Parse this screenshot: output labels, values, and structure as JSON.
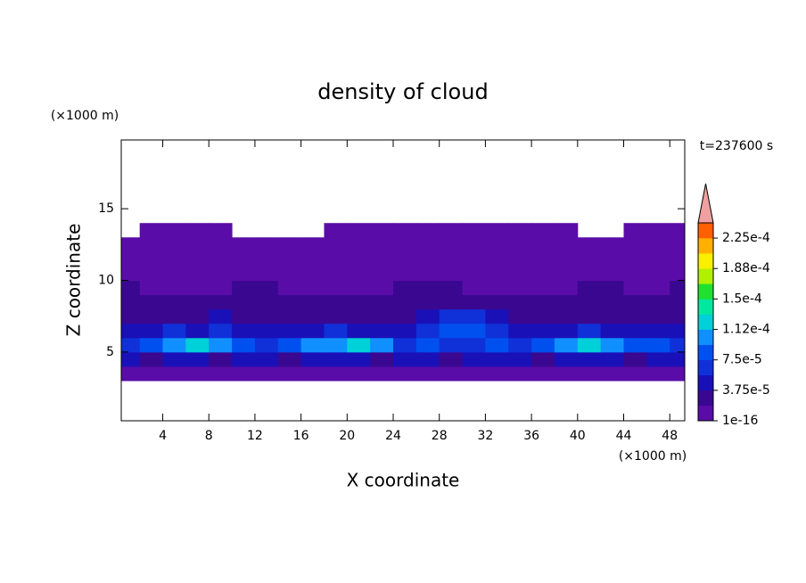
{
  "chart_data": {
    "type": "contour",
    "title": "density of cloud",
    "x_label": "X coordinate",
    "y_label": "Z coordinate",
    "x_unit": "(×1000 m)",
    "y_unit": "(×1000 m)",
    "annotation": "t=237600 s",
    "x": [
      1,
      3,
      5,
      7,
      9,
      11,
      13,
      15,
      17,
      19,
      21,
      23,
      25,
      27,
      29,
      31,
      33,
      35,
      37,
      39,
      41,
      43,
      45,
      47,
      49
    ],
    "y": [
      3.5,
      4.5,
      5.5,
      6.5,
      7.5,
      8.5,
      9.5,
      10.5,
      11.5,
      12.5,
      13.5
    ],
    "values": [
      [
        1e-05,
        1e-05,
        1e-05,
        1e-05,
        1e-05,
        1e-05,
        1e-05,
        1e-05,
        1e-05,
        1e-05,
        1e-05,
        1e-05,
        1e-05,
        1e-05,
        1e-05,
        1e-05,
        1e-05,
        1e-05,
        1e-05,
        1e-05,
        1e-05,
        1e-05,
        1e-05,
        1e-05,
        1e-05
      ],
      [
        4e-05,
        3e-05,
        4e-05,
        4e-05,
        3e-05,
        4e-05,
        4e-05,
        3e-05,
        4e-05,
        4e-05,
        4e-05,
        3e-05,
        4e-05,
        4e-05,
        3e-05,
        4e-05,
        4e-05,
        4e-05,
        3e-05,
        4e-05,
        4e-05,
        4e-05,
        3e-05,
        4e-05,
        4e-05
      ],
      [
        7e-05,
        8e-05,
        0.0001,
        0.00012,
        0.00011,
        9e-05,
        7e-05,
        9e-05,
        0.0001,
        0.00011,
        0.00012,
        0.0001,
        7e-05,
        8e-05,
        7e-05,
        6e-05,
        8e-05,
        7e-05,
        9e-05,
        0.00011,
        0.00012,
        0.0001,
        9e-05,
        8e-05,
        7e-05
      ],
      [
        5e-05,
        5e-05,
        6e-05,
        5e-05,
        6e-05,
        5e-05,
        4e-05,
        5e-05,
        5e-05,
        6e-05,
        5e-05,
        5e-05,
        5e-05,
        6e-05,
        8e-05,
        8e-05,
        7e-05,
        5e-05,
        5e-05,
        5e-05,
        6e-05,
        5e-05,
        5e-05,
        5e-05,
        5e-05
      ],
      [
        3e-05,
        3e-05,
        2e-05,
        3e-05,
        4e-05,
        3e-05,
        3e-05,
        3e-05,
        2e-05,
        3e-05,
        3e-05,
        3e-05,
        3e-05,
        4e-05,
        6e-05,
        7e-05,
        4e-05,
        3e-05,
        2e-05,
        3e-05,
        3e-05,
        2e-05,
        3e-05,
        3e-05,
        3e-05
      ],
      [
        2e-05,
        3e-05,
        2e-05,
        2e-05,
        2e-05,
        2e-05,
        3e-05,
        2e-05,
        2e-05,
        2e-05,
        3e-05,
        2e-05,
        3e-05,
        2e-05,
        3e-05,
        3e-05,
        2e-05,
        2e-05,
        2e-05,
        2e-05,
        2e-05,
        2e-05,
        2e-05,
        2e-05,
        2e-05
      ],
      [
        2e-05,
        1e-05,
        1e-05,
        1e-05,
        1e-05,
        2e-05,
        2e-05,
        1e-05,
        1e-05,
        1e-05,
        1e-05,
        1e-05,
        2e-05,
        2e-05,
        2e-05,
        1e-05,
        1e-05,
        1e-05,
        1e-05,
        1e-05,
        2e-05,
        2e-05,
        1e-05,
        1e-05,
        2e-05
      ],
      [
        1e-05,
        1e-05,
        1e-05,
        1e-05,
        1e-05,
        1e-05,
        1e-05,
        1e-05,
        1e-05,
        1e-05,
        1e-05,
        1e-05,
        1e-05,
        1e-05,
        1e-05,
        1e-05,
        1e-05,
        1e-05,
        1e-05,
        1e-05,
        1e-05,
        1e-05,
        1e-05,
        1e-05,
        1e-05
      ],
      [
        1e-05,
        1e-05,
        1e-05,
        1e-05,
        1e-05,
        1e-05,
        1e-05,
        1e-05,
        1e-05,
        1e-05,
        1e-05,
        1e-05,
        1e-05,
        1e-05,
        1e-05,
        1e-05,
        1e-05,
        1e-05,
        1e-05,
        1e-05,
        1e-05,
        1e-05,
        1e-05,
        1e-05,
        1e-05
      ],
      [
        1e-05,
        1e-05,
        1e-05,
        1e-05,
        1e-05,
        1e-05,
        1e-05,
        1e-05,
        1e-05,
        1e-05,
        1e-05,
        1e-05,
        1e-05,
        1e-05,
        1e-05,
        1e-05,
        1e-05,
        1e-05,
        1e-05,
        1e-05,
        1e-05,
        1e-05,
        1e-05,
        1e-05,
        1e-05
      ],
      [
        null,
        1e-05,
        1e-05,
        1e-05,
        1e-05,
        null,
        null,
        null,
        null,
        1e-05,
        1e-05,
        1e-05,
        1e-05,
        1e-05,
        1e-05,
        1e-05,
        1e-05,
        1e-05,
        1e-05,
        1e-05,
        null,
        null,
        1e-05,
        1e-05,
        1e-05
      ]
    ],
    "xlim": [
      0.4,
      49.3
    ],
    "ylim": [
      0.2,
      19.8
    ],
    "xticks": [
      4,
      8,
      12,
      16,
      20,
      24,
      28,
      32,
      36,
      40,
      44,
      48
    ],
    "yticks": [
      5,
      10,
      15
    ],
    "levels": [
      1e-16,
      1.875e-05,
      3.75e-05,
      5.625e-05,
      7.5e-05,
      9.375e-05,
      0.0001125,
      0.00013125,
      0.00015,
      0.00016875,
      0.0001875,
      0.00020625,
      0.000225,
      0.00024375
    ],
    "colors": [
      "#5a0ca8",
      "#3a0890",
      "#1a10b8",
      "#1030d8",
      "#0050f0",
      "#1090ff",
      "#00d0d8",
      "#00e8a0",
      "#20e030",
      "#b0f000",
      "#f8f000",
      "#ffb000",
      "#ff6000"
    ],
    "over_color": "#f0a0a0",
    "zticks": [
      {
        "value": 1e-16,
        "label": "1e-16"
      },
      {
        "value": 3.75e-05,
        "label": "3.75e-5"
      },
      {
        "value": 7.5e-05,
        "label": "7.5e-5"
      },
      {
        "value": 0.0001125,
        "label": "1.12e-4"
      },
      {
        "value": 0.00015,
        "label": "1.5e-4"
      },
      {
        "value": 0.0001875,
        "label": "1.88e-4"
      },
      {
        "value": 0.000225,
        "label": "2.25e-4"
      }
    ]
  }
}
